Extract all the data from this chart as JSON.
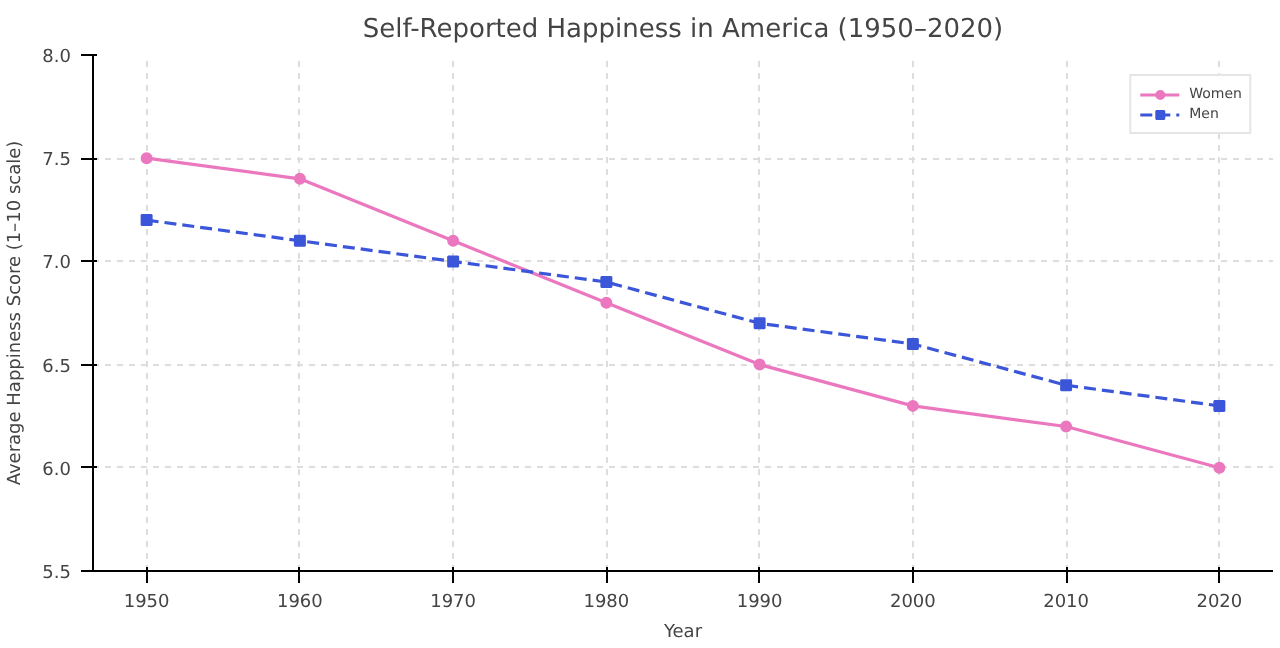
{
  "chart_data": {
    "type": "line",
    "title": "Self-Reported Happiness in America (1950–2020)",
    "xlabel": "Year",
    "ylabel": "Average Happiness Score (1–10 scale)",
    "x": [
      1950,
      1960,
      1970,
      1980,
      1990,
      2000,
      2010,
      2020
    ],
    "series": [
      {
        "name": "Women",
        "color": "#eb78bf",
        "values": [
          7.5,
          7.4,
          7.1,
          6.8,
          6.5,
          6.3,
          6.2,
          6.0
        ],
        "marker": "circle",
        "line_style": "solid"
      },
      {
        "name": "Men",
        "color": "#3b56d8",
        "values": [
          7.2,
          7.1,
          7.0,
          6.9,
          6.7,
          6.6,
          6.4,
          6.3
        ],
        "marker": "square",
        "line_style": "dashed"
      }
    ],
    "xlim": [
      1946.5,
      2023.5
    ],
    "ylim": [
      5.5,
      8.0
    ],
    "xticks": [
      1950,
      1960,
      1970,
      1980,
      1990,
      2000,
      2010,
      2020
    ],
    "yticks": [
      {
        "value": 5.5,
        "label": "5.5"
      },
      {
        "value": 6.0,
        "label": "6.0"
      },
      {
        "value": 6.5,
        "label": "6.5"
      },
      {
        "value": 7.0,
        "label": "7.0"
      },
      {
        "value": 7.5,
        "label": "7.5"
      },
      {
        "value": 8.0,
        "label": "8.0"
      }
    ],
    "grid": true,
    "legend": "top right"
  }
}
